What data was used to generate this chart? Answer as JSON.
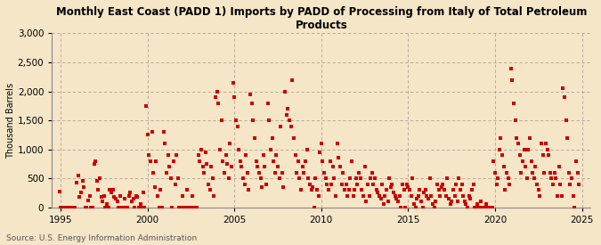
{
  "title": "Monthly East Coast (PADD 1) Imports by PADD of Processing from Italy of Total Petroleum\nProducts",
  "ylabel": "Thousand Barrels",
  "source": "Source: U.S. Energy Information Administration",
  "background_color": "#f5e6c8",
  "plot_bg_color": "#f5e6c8",
  "dot_color": "#cc0000",
  "ylim": [
    0,
    3000
  ],
  "yticks": [
    0,
    500,
    1000,
    1500,
    2000,
    2500,
    3000
  ],
  "xlim": [
    1994.5,
    2025.5
  ],
  "xticks": [
    1995,
    2000,
    2005,
    2010,
    2015,
    2020,
    2025
  ],
  "data": [
    [
      1994.92,
      270
    ],
    [
      1995.0,
      0
    ],
    [
      1995.08,
      0
    ],
    [
      1995.17,
      0
    ],
    [
      1995.25,
      0
    ],
    [
      1995.33,
      0
    ],
    [
      1995.42,
      0
    ],
    [
      1995.5,
      0
    ],
    [
      1995.58,
      0
    ],
    [
      1995.67,
      0
    ],
    [
      1995.75,
      0
    ],
    [
      1995.83,
      0
    ],
    [
      1995.92,
      430
    ],
    [
      1996.0,
      550
    ],
    [
      1996.08,
      180
    ],
    [
      1996.17,
      250
    ],
    [
      1996.25,
      450
    ],
    [
      1996.33,
      350
    ],
    [
      1996.42,
      0
    ],
    [
      1996.5,
      0
    ],
    [
      1996.58,
      120
    ],
    [
      1996.67,
      200
    ],
    [
      1996.75,
      0
    ],
    [
      1996.83,
      0
    ],
    [
      1996.92,
      750
    ],
    [
      1997.0,
      800
    ],
    [
      1997.08,
      450
    ],
    [
      1997.17,
      300
    ],
    [
      1997.25,
      500
    ],
    [
      1997.33,
      180
    ],
    [
      1997.42,
      100
    ],
    [
      1997.5,
      200
    ],
    [
      1997.58,
      0
    ],
    [
      1997.67,
      50
    ],
    [
      1997.75,
      0
    ],
    [
      1997.83,
      300
    ],
    [
      1997.92,
      250
    ],
    [
      1998.0,
      300
    ],
    [
      1998.08,
      180
    ],
    [
      1998.17,
      150
    ],
    [
      1998.25,
      100
    ],
    [
      1998.33,
      0
    ],
    [
      1998.42,
      200
    ],
    [
      1998.5,
      0
    ],
    [
      1998.58,
      0
    ],
    [
      1998.67,
      150
    ],
    [
      1998.75,
      0
    ],
    [
      1998.83,
      0
    ],
    [
      1998.92,
      200
    ],
    [
      1999.0,
      250
    ],
    [
      1999.08,
      100
    ],
    [
      1999.17,
      150
    ],
    [
      1999.25,
      0
    ],
    [
      1999.33,
      200
    ],
    [
      1999.42,
      180
    ],
    [
      1999.5,
      0
    ],
    [
      1999.58,
      50
    ],
    [
      1999.67,
      0
    ],
    [
      1999.75,
      250
    ],
    [
      1999.83,
      0
    ],
    [
      1999.92,
      1750
    ],
    [
      2000.0,
      1250
    ],
    [
      2000.08,
      900
    ],
    [
      2000.17,
      800
    ],
    [
      2000.25,
      1300
    ],
    [
      2000.33,
      600
    ],
    [
      2000.42,
      350
    ],
    [
      2000.5,
      800
    ],
    [
      2000.58,
      200
    ],
    [
      2000.67,
      0
    ],
    [
      2000.75,
      300
    ],
    [
      2000.83,
      0
    ],
    [
      2000.92,
      1300
    ],
    [
      2001.0,
      1100
    ],
    [
      2001.08,
      600
    ],
    [
      2001.17,
      900
    ],
    [
      2001.25,
      700
    ],
    [
      2001.33,
      500
    ],
    [
      2001.42,
      0
    ],
    [
      2001.5,
      800
    ],
    [
      2001.58,
      400
    ],
    [
      2001.67,
      900
    ],
    [
      2001.75,
      500
    ],
    [
      2001.83,
      0
    ],
    [
      2001.92,
      0
    ],
    [
      2002.0,
      200
    ],
    [
      2002.08,
      0
    ],
    [
      2002.17,
      0
    ],
    [
      2002.25,
      300
    ],
    [
      2002.33,
      0
    ],
    [
      2002.42,
      0
    ],
    [
      2002.5,
      0
    ],
    [
      2002.58,
      200
    ],
    [
      2002.67,
      0
    ],
    [
      2002.75,
      0
    ],
    [
      2002.83,
      0
    ],
    [
      2002.92,
      900
    ],
    [
      2003.0,
      800
    ],
    [
      2003.08,
      1000
    ],
    [
      2003.17,
      700
    ],
    [
      2003.25,
      600
    ],
    [
      2003.33,
      950
    ],
    [
      2003.42,
      750
    ],
    [
      2003.5,
      400
    ],
    [
      2003.58,
      300
    ],
    [
      2003.67,
      700
    ],
    [
      2003.75,
      500
    ],
    [
      2003.83,
      200
    ],
    [
      2003.92,
      1900
    ],
    [
      2004.0,
      2000
    ],
    [
      2004.08,
      1800
    ],
    [
      2004.17,
      1000
    ],
    [
      2004.25,
      1500
    ],
    [
      2004.33,
      800
    ],
    [
      2004.42,
      600
    ],
    [
      2004.5,
      900
    ],
    [
      2004.58,
      750
    ],
    [
      2004.67,
      500
    ],
    [
      2004.75,
      1100
    ],
    [
      2004.83,
      700
    ],
    [
      2004.92,
      2150
    ],
    [
      2005.0,
      1900
    ],
    [
      2005.08,
      1500
    ],
    [
      2005.17,
      1400
    ],
    [
      2005.25,
      1000
    ],
    [
      2005.33,
      800
    ],
    [
      2005.42,
      700
    ],
    [
      2005.5,
      500
    ],
    [
      2005.58,
      400
    ],
    [
      2005.67,
      900
    ],
    [
      2005.75,
      600
    ],
    [
      2005.83,
      300
    ],
    [
      2005.92,
      1950
    ],
    [
      2006.0,
      1800
    ],
    [
      2006.08,
      1500
    ],
    [
      2006.17,
      1200
    ],
    [
      2006.25,
      800
    ],
    [
      2006.33,
      700
    ],
    [
      2006.42,
      600
    ],
    [
      2006.5,
      500
    ],
    [
      2006.58,
      350
    ],
    [
      2006.67,
      900
    ],
    [
      2006.75,
      700
    ],
    [
      2006.83,
      400
    ],
    [
      2006.92,
      1800
    ],
    [
      2007.0,
      1500
    ],
    [
      2007.08,
      1000
    ],
    [
      2007.17,
      1200
    ],
    [
      2007.25,
      800
    ],
    [
      2007.33,
      600
    ],
    [
      2007.42,
      900
    ],
    [
      2007.5,
      700
    ],
    [
      2007.58,
      500
    ],
    [
      2007.67,
      1400
    ],
    [
      2007.75,
      600
    ],
    [
      2007.83,
      350
    ],
    [
      2007.92,
      2000
    ],
    [
      2008.0,
      1600
    ],
    [
      2008.08,
      1700
    ],
    [
      2008.17,
      1500
    ],
    [
      2008.25,
      1400
    ],
    [
      2008.33,
      2200
    ],
    [
      2008.42,
      1200
    ],
    [
      2008.5,
      900
    ],
    [
      2008.58,
      600
    ],
    [
      2008.67,
      800
    ],
    [
      2008.75,
      500
    ],
    [
      2008.83,
      300
    ],
    [
      2008.92,
      700
    ],
    [
      2009.0,
      600
    ],
    [
      2009.08,
      800
    ],
    [
      2009.17,
      1000
    ],
    [
      2009.25,
      500
    ],
    [
      2009.33,
      400
    ],
    [
      2009.42,
      300
    ],
    [
      2009.5,
      350
    ],
    [
      2009.58,
      0
    ],
    [
      2009.67,
      500
    ],
    [
      2009.75,
      300
    ],
    [
      2009.83,
      200
    ],
    [
      2009.92,
      950
    ],
    [
      2010.0,
      1100
    ],
    [
      2010.08,
      800
    ],
    [
      2010.17,
      600
    ],
    [
      2010.25,
      500
    ],
    [
      2010.33,
      400
    ],
    [
      2010.42,
      300
    ],
    [
      2010.5,
      800
    ],
    [
      2010.58,
      400
    ],
    [
      2010.67,
      700
    ],
    [
      2010.75,
      500
    ],
    [
      2010.83,
      200
    ],
    [
      2010.92,
      1100
    ],
    [
      2011.0,
      850
    ],
    [
      2011.08,
      700
    ],
    [
      2011.17,
      400
    ],
    [
      2011.25,
      600
    ],
    [
      2011.33,
      300
    ],
    [
      2011.42,
      400
    ],
    [
      2011.5,
      200
    ],
    [
      2011.58,
      300
    ],
    [
      2011.67,
      500
    ],
    [
      2011.75,
      800
    ],
    [
      2011.83,
      200
    ],
    [
      2011.92,
      300
    ],
    [
      2012.0,
      500
    ],
    [
      2012.08,
      400
    ],
    [
      2012.17,
      600
    ],
    [
      2012.25,
      500
    ],
    [
      2012.33,
      300
    ],
    [
      2012.42,
      200
    ],
    [
      2012.5,
      700
    ],
    [
      2012.58,
      100
    ],
    [
      2012.67,
      400
    ],
    [
      2012.75,
      200
    ],
    [
      2012.83,
      500
    ],
    [
      2012.92,
      600
    ],
    [
      2013.0,
      400
    ],
    [
      2013.08,
      500
    ],
    [
      2013.17,
      300
    ],
    [
      2013.25,
      250
    ],
    [
      2013.33,
      200
    ],
    [
      2013.42,
      150
    ],
    [
      2013.5,
      400
    ],
    [
      2013.58,
      50
    ],
    [
      2013.67,
      200
    ],
    [
      2013.75,
      300
    ],
    [
      2013.83,
      100
    ],
    [
      2013.92,
      500
    ],
    [
      2014.0,
      350
    ],
    [
      2014.08,
      400
    ],
    [
      2014.17,
      250
    ],
    [
      2014.25,
      200
    ],
    [
      2014.33,
      150
    ],
    [
      2014.42,
      100
    ],
    [
      2014.5,
      200
    ],
    [
      2014.58,
      0
    ],
    [
      2014.67,
      400
    ],
    [
      2014.75,
      300
    ],
    [
      2014.83,
      0
    ],
    [
      2014.92,
      400
    ],
    [
      2015.0,
      350
    ],
    [
      2015.08,
      300
    ],
    [
      2015.17,
      200
    ],
    [
      2015.25,
      500
    ],
    [
      2015.33,
      50
    ],
    [
      2015.42,
      0
    ],
    [
      2015.5,
      150
    ],
    [
      2015.58,
      200
    ],
    [
      2015.67,
      300
    ],
    [
      2015.75,
      100
    ],
    [
      2015.83,
      0
    ],
    [
      2015.92,
      250
    ],
    [
      2016.0,
      300
    ],
    [
      2016.08,
      200
    ],
    [
      2016.17,
      150
    ],
    [
      2016.25,
      500
    ],
    [
      2016.33,
      200
    ],
    [
      2016.42,
      50
    ],
    [
      2016.5,
      0
    ],
    [
      2016.58,
      100
    ],
    [
      2016.67,
      400
    ],
    [
      2016.75,
      300
    ],
    [
      2016.83,
      200
    ],
    [
      2016.92,
      350
    ],
    [
      2017.0,
      400
    ],
    [
      2017.08,
      300
    ],
    [
      2017.17,
      200
    ],
    [
      2017.25,
      500
    ],
    [
      2017.33,
      150
    ],
    [
      2017.42,
      50
    ],
    [
      2017.5,
      100
    ],
    [
      2017.58,
      300
    ],
    [
      2017.67,
      200
    ],
    [
      2017.75,
      400
    ],
    [
      2017.83,
      100
    ],
    [
      2017.92,
      500
    ],
    [
      2018.0,
      300
    ],
    [
      2018.08,
      400
    ],
    [
      2018.17,
      200
    ],
    [
      2018.25,
      100
    ],
    [
      2018.33,
      50
    ],
    [
      2018.42,
      0
    ],
    [
      2018.5,
      200
    ],
    [
      2018.58,
      150
    ],
    [
      2018.67,
      300
    ],
    [
      2018.75,
      400
    ],
    [
      2018.83,
      0
    ],
    [
      2018.92,
      0
    ],
    [
      2019.0,
      50
    ],
    [
      2019.08,
      0
    ],
    [
      2019.17,
      100
    ],
    [
      2019.25,
      0
    ],
    [
      2019.33,
      0
    ],
    [
      2019.42,
      0
    ],
    [
      2019.5,
      50
    ],
    [
      2019.58,
      0
    ],
    [
      2019.67,
      0
    ],
    [
      2019.75,
      0
    ],
    [
      2019.83,
      0
    ],
    [
      2019.92,
      800
    ],
    [
      2020.0,
      600
    ],
    [
      2020.08,
      400
    ],
    [
      2020.17,
      500
    ],
    [
      2020.25,
      1000
    ],
    [
      2020.33,
      1200
    ],
    [
      2020.42,
      900
    ],
    [
      2020.5,
      700
    ],
    [
      2020.58,
      300
    ],
    [
      2020.67,
      600
    ],
    [
      2020.75,
      500
    ],
    [
      2020.83,
      400
    ],
    [
      2020.92,
      2400
    ],
    [
      2021.0,
      2200
    ],
    [
      2021.08,
      1800
    ],
    [
      2021.17,
      1500
    ],
    [
      2021.25,
      1200
    ],
    [
      2021.33,
      1100
    ],
    [
      2021.42,
      900
    ],
    [
      2021.5,
      600
    ],
    [
      2021.58,
      800
    ],
    [
      2021.67,
      1000
    ],
    [
      2021.75,
      700
    ],
    [
      2021.83,
      500
    ],
    [
      2021.92,
      1000
    ],
    [
      2022.0,
      1200
    ],
    [
      2022.08,
      800
    ],
    [
      2022.17,
      600
    ],
    [
      2022.25,
      500
    ],
    [
      2022.33,
      700
    ],
    [
      2022.42,
      400
    ],
    [
      2022.5,
      300
    ],
    [
      2022.58,
      200
    ],
    [
      2022.67,
      1100
    ],
    [
      2022.75,
      900
    ],
    [
      2022.83,
      600
    ],
    [
      2022.92,
      1100
    ],
    [
      2023.0,
      1000
    ],
    [
      2023.08,
      900
    ],
    [
      2023.17,
      600
    ],
    [
      2023.25,
      500
    ],
    [
      2023.33,
      400
    ],
    [
      2023.42,
      600
    ],
    [
      2023.5,
      500
    ],
    [
      2023.58,
      200
    ],
    [
      2023.67,
      700
    ],
    [
      2023.75,
      400
    ],
    [
      2023.83,
      200
    ],
    [
      2023.92,
      2050
    ],
    [
      2024.0,
      1900
    ],
    [
      2024.08,
      1500
    ],
    [
      2024.17,
      1200
    ],
    [
      2024.25,
      600
    ],
    [
      2024.33,
      400
    ],
    [
      2024.42,
      500
    ],
    [
      2024.5,
      200
    ],
    [
      2024.58,
      0
    ],
    [
      2024.67,
      800
    ],
    [
      2024.75,
      600
    ],
    [
      2024.83,
      400
    ]
  ]
}
